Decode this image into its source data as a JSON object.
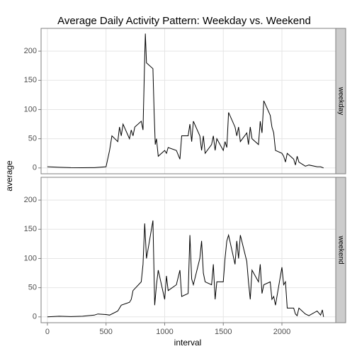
{
  "chart_data": {
    "type": "line",
    "title": "Average Daily Activity Pattern: Weekday vs. Weekend",
    "x_label": "interval",
    "y_label": "average",
    "xlim": [
      -54,
      2459
    ],
    "xticks": [
      0,
      500,
      1000,
      1500,
      2000
    ],
    "ylim": [
      -10,
      239
    ],
    "yticks": [
      0,
      50,
      100,
      150,
      200
    ],
    "grid": true,
    "color": "#000000",
    "series": [
      {
        "name": "weekday",
        "x": [
          0,
          100,
          200,
          300,
          400,
          500,
          530,
          550,
          600,
          615,
          630,
          645,
          700,
          715,
          730,
          745,
          800,
          815,
          830,
          835,
          845,
          900,
          910,
          920,
          930,
          945,
          1000,
          1015,
          1030,
          1100,
          1130,
          1145,
          1200,
          1215,
          1230,
          1245,
          1300,
          1315,
          1330,
          1345,
          1400,
          1415,
          1430,
          1445,
          1500,
          1515,
          1530,
          1545,
          1600,
          1615,
          1630,
          1645,
          1700,
          1715,
          1730,
          1745,
          1800,
          1815,
          1830,
          1845,
          1900,
          1915,
          1930,
          1945,
          2000,
          2015,
          2030,
          2045,
          2100,
          2115,
          2130,
          2145,
          2200,
          2230,
          2300,
          2330,
          2355
        ],
        "values": [
          2,
          1,
          0.5,
          0.3,
          0.5,
          2,
          30,
          55,
          45,
          70,
          55,
          75,
          50,
          65,
          55,
          70,
          80,
          65,
          190,
          230,
          180,
          170,
          95,
          40,
          50,
          20,
          30,
          25,
          35,
          30,
          15,
          55,
          55,
          75,
          45,
          80,
          55,
          30,
          55,
          25,
          40,
          55,
          30,
          50,
          30,
          45,
          35,
          95,
          70,
          55,
          70,
          45,
          60,
          40,
          70,
          50,
          40,
          80,
          60,
          115,
          90,
          70,
          60,
          30,
          25,
          20,
          10,
          25,
          15,
          5,
          20,
          10,
          3,
          5,
          2,
          2,
          0
        ]
      },
      {
        "name": "weekend",
        "x": [
          0,
          100,
          200,
          300,
          400,
          430,
          500,
          530,
          600,
          630,
          700,
          715,
          730,
          800,
          815,
          830,
          845,
          900,
          915,
          930,
          945,
          1000,
          1015,
          1030,
          1100,
          1130,
          1145,
          1200,
          1215,
          1230,
          1245,
          1300,
          1315,
          1330,
          1345,
          1400,
          1415,
          1430,
          1445,
          1500,
          1515,
          1530,
          1545,
          1600,
          1615,
          1630,
          1645,
          1700,
          1715,
          1730,
          1745,
          1800,
          1815,
          1830,
          1845,
          1900,
          1915,
          1930,
          1945,
          2000,
          2015,
          2030,
          2045,
          2100,
          2115,
          2130,
          2145,
          2200,
          2230,
          2300,
          2330,
          2345,
          2355
        ],
        "values": [
          0,
          1,
          0.5,
          1,
          3,
          5,
          4,
          3,
          10,
          20,
          25,
          30,
          45,
          60,
          90,
          160,
          100,
          165,
          20,
          55,
          80,
          30,
          70,
          45,
          55,
          80,
          35,
          40,
          140,
          65,
          55,
          100,
          130,
          75,
          60,
          55,
          90,
          30,
          60,
          60,
          100,
          130,
          140,
          90,
          130,
          100,
          140,
          95,
          60,
          30,
          80,
          60,
          90,
          40,
          55,
          60,
          30,
          35,
          20,
          85,
          55,
          60,
          15,
          15,
          5,
          2,
          15,
          5,
          2,
          10,
          3,
          12,
          0
        ]
      }
    ]
  }
}
